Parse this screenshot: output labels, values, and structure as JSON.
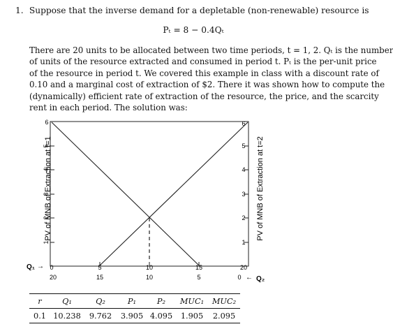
{
  "question": {
    "number": "1.",
    "intro": "Suppose that the inverse demand for a depletable (non-renewable) resource is",
    "equation": "Pₜ = 8 − 0.4Qₜ",
    "paragraph_lines": [
      "There are 20 units to be allocated between two time periods, t = 1, 2. Qₜ is the number",
      "of units of the resource extracted and consumed in period t. Pₜ is the per-unit price",
      "of the resource in period t. We covered this example in class with a discount rate of",
      "0.10 and a marginal cost of extraction of $2. There it was shown how to compute the",
      "(dynamically) efficient rate of extraction of the resource, the price, and the scarcity",
      "rent in each period. The solution was:"
    ]
  },
  "figure": {
    "left_axis_label": "PV of MNB of Extraction at t=1",
    "right_axis_label": "PV of MNB of Extraction at t=2",
    "left_ticks": [
      "1",
      "2",
      "3",
      "4",
      "5",
      "6"
    ],
    "right_ticks": [
      "1",
      "2",
      "3",
      "4",
      "5",
      "6"
    ],
    "bottom_ticks_q1": [
      "0",
      "5",
      "10",
      "15",
      "20"
    ],
    "bottom_ticks_q2": [
      "20",
      "15",
      "10",
      "5",
      "0"
    ],
    "q1_label": "Q₁",
    "q1_arrow": "→",
    "q2_label": "Q₂",
    "q2_arrow": "←"
  },
  "table": {
    "headers": [
      "r",
      "Q₁",
      "Q₂",
      "P₁",
      "P₂",
      "MUC₁",
      "MUC₂"
    ],
    "rows": [
      [
        "0.1",
        "10.238",
        "9.762",
        "3.905",
        "4.095",
        "1.905",
        "2.095"
      ]
    ]
  }
}
